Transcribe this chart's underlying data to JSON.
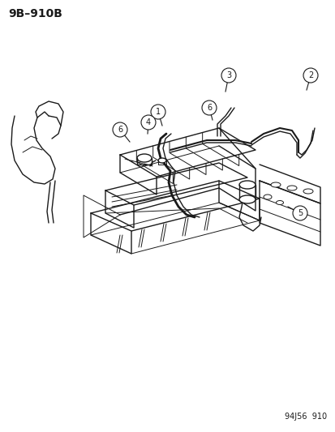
{
  "title_label": "9B–910B",
  "footer_label": "94J56  910",
  "bg_color": "#ffffff",
  "line_color": "#1a1a1a",
  "title_fontsize": 10,
  "footer_fontsize": 7
}
